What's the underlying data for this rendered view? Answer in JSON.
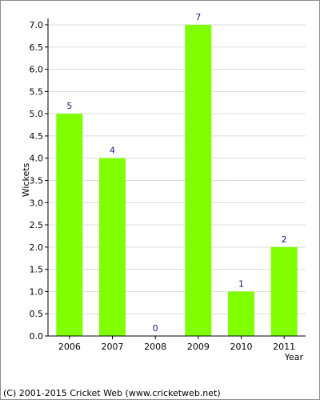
{
  "chart_data": {
    "type": "bar",
    "categories": [
      "2006",
      "2007",
      "2008",
      "2009",
      "2010",
      "2011"
    ],
    "values": [
      5,
      4,
      0,
      7,
      1,
      2
    ],
    "data_labels": [
      "5",
      "4",
      "0",
      "7",
      "1",
      "2"
    ],
    "xlabel": "Year",
    "ylabel": "Wickets",
    "ylim": [
      0,
      7
    ],
    "yticks": [
      "0.0",
      "0.5",
      "1.0",
      "1.5",
      "2.0",
      "2.5",
      "3.0",
      "3.5",
      "4.0",
      "4.5",
      "5.0",
      "5.5",
      "6.0",
      "6.5",
      "7.0"
    ],
    "grid": true,
    "bar_color": "#7fff00",
    "label_color": "#1a1a7a"
  },
  "footer": "(C) 2001-2015 Cricket Web (www.cricketweb.net)"
}
